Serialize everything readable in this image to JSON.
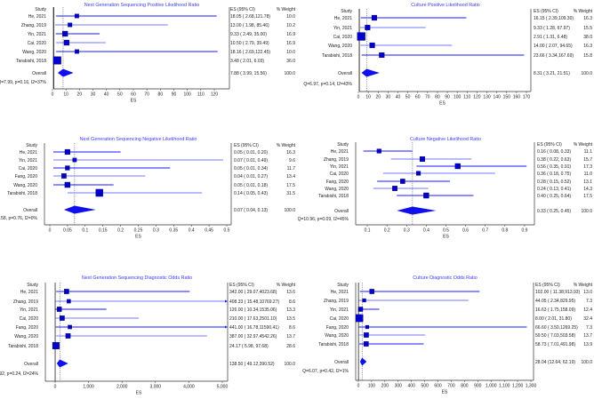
{
  "chart_data": [
    {
      "type": "forest",
      "title": "Next Generation Sequencing Positive Likelihood Ratio",
      "xlabel": "ES",
      "col_study": "Study",
      "col_es": "ES (95% CI)",
      "col_weight": "% Weight",
      "xlim": [
        0,
        120
      ],
      "null_value": 1,
      "ticks": [
        0,
        10,
        20,
        30,
        40,
        50,
        60,
        70,
        80,
        90,
        100,
        110,
        120
      ],
      "tick_labels": [
        "0",
        "10",
        "20",
        "30",
        "40",
        "50",
        "60",
        "70",
        "80",
        "90",
        "100",
        "110",
        "120"
      ],
      "studies": [
        {
          "name": "He, 2021",
          "es": 18.05,
          "lo": 2.68,
          "hi": 121.78,
          "ci_text": "18.05 ( 2.68,121.78)",
          "weight": "10.0"
        },
        {
          "name": "Zhang, 2019",
          "es": 13.0,
          "lo": 1.98,
          "hi": 85.46,
          "ci_text": "13.00 ( 1.98, 85.46)",
          "weight": "10.2"
        },
        {
          "name": "Yin, 2021",
          "es": 9.33,
          "lo": 2.49,
          "hi": 35.0,
          "ci_text": "9.33 ( 2.49, 35.00)",
          "weight": "16.9"
        },
        {
          "name": "Cai, 2020",
          "es": 10.5,
          "lo": 2.79,
          "hi": 39.49,
          "ci_text": "10.50 ( 2.79, 39.49)",
          "weight": "16.9"
        },
        {
          "name": "Wang, 2020",
          "es": 18.16,
          "lo": 2.69,
          "hi": 122.45,
          "ci_text": "18.16 ( 2.69,122.45)",
          "weight": "10.0"
        },
        {
          "name": "Tarabishi, 2018",
          "es": 3.48,
          "lo": 2.01,
          "hi": 6.03,
          "ci_text": "3.48 ( 2.01, 6.03)",
          "weight": "36.0"
        }
      ],
      "overall": {
        "name": "Overall",
        "es": 7.88,
        "lo": 3.99,
        "hi": 15.56,
        "ci_text": "7.88 ( 3.99, 15.56)",
        "weight": "100.0"
      },
      "heterogeneity": "Q=7.99, p=0.16, I2=37%"
    },
    {
      "type": "forest",
      "title": "Culture Positive Likelihood Ratio",
      "xlabel": "ES",
      "col_study": "Study",
      "col_es": "ES (95% CI)",
      "col_weight": "% Weight",
      "xlim": [
        0,
        170
      ],
      "null_value": 1,
      "ticks": [
        0,
        10,
        20,
        30,
        40,
        50,
        60,
        70,
        80,
        90,
        100,
        110,
        120,
        130,
        140,
        150,
        160,
        170
      ],
      "tick_labels": [
        "0",
        "10",
        "20",
        "30",
        "40",
        "50",
        "60",
        "70",
        "80",
        "90",
        "100",
        "110",
        "120",
        "130",
        "140",
        "150",
        "160",
        "170"
      ],
      "studies": [
        {
          "name": "He, 2021",
          "es": 16.15,
          "lo": 2.39,
          "hi": 109.3,
          "ci_text": "16.15 ( 2.39,109.30)",
          "weight": "16.3"
        },
        {
          "name": "Yin, 2021",
          "es": 9.33,
          "lo": 1.28,
          "hi": 67.97,
          "ci_text": "9.33 ( 1.28, 67.97)",
          "weight": "15.5"
        },
        {
          "name": "Cai, 2020",
          "es": 2.91,
          "lo": 1.31,
          "hi": 6.48,
          "ci_text": "2.91 ( 1.31, 6.48)",
          "weight": "38.0"
        },
        {
          "name": "Wang, 2020",
          "es": 14.0,
          "lo": 2.07,
          "hi": 94.65,
          "ci_text": "14.00 ( 2.07, 94.65)",
          "weight": "16.3"
        },
        {
          "name": "Tarabishi, 2018",
          "es": 23.66,
          "lo": 3.34,
          "hi": 167.69,
          "ci_text": "23.66 ( 3.34,167.69)",
          "weight": "15.8"
        }
      ],
      "overall": {
        "name": "Overall",
        "es": 8.31,
        "lo": 3.21,
        "hi": 21.51,
        "ci_text": "8.31 ( 3.21, 21.51)",
        "weight": "100.0"
      },
      "heterogeneity": "Q=6.97, p=0.14, I2=43%"
    },
    {
      "type": "forest",
      "title": "Next Generation Sequencing Negative Likelihood Ratio",
      "xlabel": "ES",
      "col_study": "Study",
      "col_es": "ES (95% CI)",
      "col_weight": "% Weight",
      "xlim": [
        0,
        0.5
      ],
      "null_value": null,
      "ticks": [
        0,
        0.05,
        0.1,
        0.15,
        0.2,
        0.25,
        0.3,
        0.35,
        0.4,
        0.45,
        0.5
      ],
      "tick_labels": [
        "0",
        "0.05",
        "0.1",
        "0.15",
        "0.2",
        "0.25",
        "0.3",
        "0.35",
        "0.4",
        "0.45",
        "0.5"
      ],
      "studies": [
        {
          "name": "He, 2021",
          "es": 0.05,
          "lo": 0.01,
          "hi": 0.2,
          "ci_text": "0.05 ( 0.01, 0.20)",
          "weight": "16.3"
        },
        {
          "name": "Yin, 2021",
          "es": 0.07,
          "lo": 0.01,
          "hi": 0.49,
          "ci_text": "0.07 ( 0.01, 0.49)",
          "weight": "9.6"
        },
        {
          "name": "Cai, 2020",
          "es": 0.05,
          "lo": 0.01,
          "hi": 0.34,
          "ci_text": "0.05 ( 0.01, 0.34)",
          "weight": "11.7"
        },
        {
          "name": "Fang, 2020",
          "es": 0.04,
          "lo": 0.01,
          "hi": 0.27,
          "ci_text": "0.04 ( 0.01, 0.27)",
          "weight": "13.4"
        },
        {
          "name": "Wang, 2020",
          "es": 0.05,
          "lo": 0.01,
          "hi": 0.18,
          "ci_text": "0.05 ( 0.01, 0.18)",
          "weight": "17.5"
        },
        {
          "name": "Tarabishi, 2018",
          "es": 0.14,
          "lo": 0.05,
          "hi": 0.43,
          "ci_text": "0.14 ( 0.05, 0.43)",
          "weight": "31.5"
        }
      ],
      "overall": {
        "name": "Overall",
        "es": 0.07,
        "lo": 0.04,
        "hi": 0.13,
        "ci_text": "0.07 ( 0.04, 0.13)",
        "weight": "100.0"
      },
      "heterogeneity": "Q=2.58, p=0.76, I2=0%"
    },
    {
      "type": "forest",
      "title": "Culture Negative Likelihood Ratio",
      "xlabel": "ES",
      "col_study": "Study",
      "col_es": "ES (95% CI)",
      "col_weight": "% Weight",
      "xlim": [
        0.05,
        0.95
      ],
      "null_value": null,
      "ticks": [
        0.1,
        0.2,
        0.3,
        0.4,
        0.5,
        0.6,
        0.7,
        0.8,
        0.9
      ],
      "tick_labels": [
        "0.1",
        "0.2",
        "0.3",
        "0.4",
        "0.5",
        "0.6",
        "0.7",
        "0.8",
        "0.9"
      ],
      "studies": [
        {
          "name": "He, 2021",
          "es": 0.16,
          "lo": 0.08,
          "hi": 0.33,
          "ci_text": "0.16 ( 0.08, 0.33)",
          "weight": "11.1"
        },
        {
          "name": "Zhang, 2019",
          "es": 0.38,
          "lo": 0.22,
          "hi": 0.63,
          "ci_text": "0.38 ( 0.22, 0.63)",
          "weight": "15.7"
        },
        {
          "name": "Yin, 2021",
          "es": 0.56,
          "lo": 0.35,
          "hi": 0.91,
          "ci_text": "0.56 ( 0.35, 0.91)",
          "weight": "17.3"
        },
        {
          "name": "Cai, 2020",
          "es": 0.36,
          "lo": 0.18,
          "hi": 0.75,
          "ci_text": "0.36 ( 0.18, 0.75)",
          "weight": "11.0"
        },
        {
          "name": "Fang, 2020",
          "es": 0.28,
          "lo": 0.15,
          "hi": 0.52,
          "ci_text": "0.28 ( 0.15, 0.52)",
          "weight": "13.1"
        },
        {
          "name": "Wang, 2020",
          "es": 0.24,
          "lo": 0.13,
          "hi": 0.41,
          "ci_text": "0.24 ( 0.13, 0.41)",
          "weight": "14.3"
        },
        {
          "name": "Tarabishi, 2018",
          "es": 0.4,
          "lo": 0.25,
          "hi": 0.64,
          "ci_text": "0.40 ( 0.25, 0.64)",
          "weight": "17.5"
        }
      ],
      "overall": {
        "name": "Overall",
        "es": 0.33,
        "lo": 0.25,
        "hi": 0.45,
        "ci_text": "0.33 ( 0.25, 0.45)",
        "weight": "100.0"
      },
      "heterogeneity": "Q=10.96, p=0.09, I2=45%"
    },
    {
      "type": "forest",
      "title": "Next Generation Sequencing Diagnostic Odds Ratio",
      "xlabel": "ES",
      "col_study": "Study",
      "col_es": "ES (95% CI)",
      "col_weight": "% Weight",
      "xlim": [
        0,
        5000
      ],
      "null_value": 1,
      "ticks": [
        0,
        1000,
        2000,
        3000,
        4000,
        5000
      ],
      "tick_labels": [
        "0",
        "1,000",
        "2,000",
        "3,000",
        "4,000",
        "5,000"
      ],
      "studies": [
        {
          "name": "He, 2021",
          "es": 342.0,
          "lo": 29.07,
          "hi": 4023.68,
          "ci_text": "342.00 ( 29.07,4023.68)",
          "weight": "13.6"
        },
        {
          "name": "Zhang, 2019",
          "es": 408.33,
          "lo": 15.48,
          "hi": 10769.27,
          "ci_text": "408.33 ( 15.48,10769.27)",
          "weight": "8.6"
        },
        {
          "name": "Yin, 2021",
          "es": 126.0,
          "lo": 10.34,
          "hi": 1535.06,
          "ci_text": "126.00 ( 10.34,1535.06)",
          "weight": "13.3"
        },
        {
          "name": "Cai, 2020",
          "es": 210.0,
          "lo": 17.63,
          "hi": 2501.1,
          "ci_text": "210.00 ( 17.63,2501.10)",
          "weight": "13.5"
        },
        {
          "name": "Fang, 2020",
          "es": 441.0,
          "lo": 16.78,
          "hi": 11590.41,
          "ci_text": "441.00 ( 16.78,11590.41)",
          "weight": "8.6"
        },
        {
          "name": "Wang, 2020",
          "es": 387.0,
          "lo": 32.97,
          "hi": 4542.26,
          "ci_text": "387.00 ( 32.97,4542.26)",
          "weight": "13.7"
        },
        {
          "name": "Tarabishi, 2018",
          "es": 24.17,
          "lo": 5.98,
          "hi": 97.68,
          "ci_text": "24.17 ( 5.98, 97.68)",
          "weight": "28.6"
        }
      ],
      "overall": {
        "name": "Overall",
        "es": 138.5,
        "lo": 49.12,
        "hi": 390.52,
        "ci_text": "138.50 ( 49.12,390.52)",
        "weight": "100.0"
      },
      "heterogeneity": "Q=7.92, p=0.24, I2=24%"
    },
    {
      "type": "forest",
      "title": "Culture Diagnostic Odds Ratio",
      "xlabel": "ES",
      "col_study": "Study",
      "col_es": "ES (95% CI)",
      "col_weight": "% Weight",
      "xlim": [
        0,
        1300
      ],
      "null_value": 1,
      "ticks": [
        0,
        100,
        200,
        300,
        400,
        500,
        600,
        700,
        800,
        900,
        1000,
        1100,
        1200,
        1300
      ],
      "tick_labels": [
        "0",
        "100",
        "200",
        "300",
        "400",
        "500",
        "600",
        "700",
        "800",
        "900",
        "1,000",
        "1,100",
        "1,200",
        "1,300"
      ],
      "studies": [
        {
          "name": "He, 2021",
          "es": 102.0,
          "lo": 11.38,
          "hi": 913.93,
          "ci_text": "102.00 ( 11.38,913.93)",
          "weight": "13.0"
        },
        {
          "name": "Zhang, 2019",
          "es": 44.05,
          "lo": 2.34,
          "hi": 829.95,
          "ci_text": "44.05 ( 2.34,829.95)",
          "weight": "7.3"
        },
        {
          "name": "Yin, 2021",
          "es": 16.63,
          "lo": 1.75,
          "hi": 158.09,
          "ci_text": "16.63 ( 1.75,158.09)",
          "weight": "12.4"
        },
        {
          "name": "Cai, 2020",
          "es": 8.0,
          "lo": 2.01,
          "hi": 31.8,
          "ci_text": "8.00 ( 2.01, 31.80)",
          "weight": "32.4"
        },
        {
          "name": "Fang, 2020",
          "es": 66.6,
          "lo": 3.5,
          "hi": 1269.25,
          "ci_text": "66.60 ( 3.50,1269.25)",
          "weight": "7.3"
        },
        {
          "name": "Wang, 2020",
          "es": 59.5,
          "lo": 7.03,
          "hi": 503.58,
          "ci_text": "59.50 ( 7.03,503.58)",
          "weight": "13.7"
        },
        {
          "name": "Tarabishi, 2018",
          "es": 58.73,
          "lo": 7.01,
          "hi": 491.98,
          "ci_text": "58.73 ( 7.01,491.98)",
          "weight": "13.9"
        }
      ],
      "overall": {
        "name": "Overall",
        "es": 28.04,
        "lo": 12.64,
        "hi": 62.19,
        "ci_text": "28.04 (12.64, 62.19)",
        "weight": "100.0"
      },
      "heterogeneity": "Q=6.07, p=0.42, I2=1%"
    }
  ],
  "colors": {
    "marker": "#0000cc",
    "ci_dark": "#1a1aff",
    "ci_light": "#7777ff",
    "title": "#3b3bff"
  }
}
